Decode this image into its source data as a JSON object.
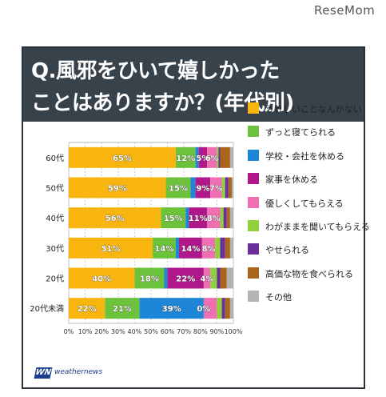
{
  "watermark": "ReseMom",
  "header": {
    "title_line1": "Q.風邪をひいて嬉しかった",
    "title_line2": "ことはありますか？(年代別)"
  },
  "logo": {
    "mark": "WN",
    "text": "weathernews"
  },
  "chart_data": {
    "type": "bar",
    "orientation": "horizontal",
    "stacked": true,
    "categories": [
      "60代",
      "50代",
      "40代",
      "30代",
      "20代",
      "20代未満"
    ],
    "x_ticks": [
      "0%",
      "10%",
      "20%",
      "30%",
      "40%",
      "50%",
      "60%",
      "70%",
      "80%",
      "90%",
      "100%"
    ],
    "xlim": [
      0,
      100
    ],
    "grid": true,
    "legend_position": "right",
    "series": [
      {
        "name": "うれしいことなんかない",
        "color": "#f9b50f",
        "values": [
          65,
          59,
          56,
          51,
          40,
          22
        ]
      },
      {
        "name": "ずっと寝てられる",
        "color": "#6cc23a",
        "values": [
          12,
          15,
          15,
          14,
          18,
          21
        ]
      },
      {
        "name": "学校・会社を休める",
        "color": "#1e86d6",
        "values": [
          2,
          3,
          2,
          2,
          2,
          39
        ]
      },
      {
        "name": "家事を休める",
        "color": "#b0178a",
        "values": [
          5,
          9,
          11,
          14,
          22,
          0
        ]
      },
      {
        "name": "優しくしてもらえる",
        "color": "#ef6fb3",
        "values": [
          6,
          7,
          8,
          8,
          4,
          8
        ]
      },
      {
        "name": "わがままを聞いてもらえる",
        "color": "#8ed13a",
        "values": [
          1,
          2,
          2,
          3,
          4,
          3
        ]
      },
      {
        "name": "やせられる",
        "color": "#6a2f9c",
        "values": [
          1,
          2,
          2,
          3,
          2,
          2
        ]
      },
      {
        "name": "高価な物を食べられる",
        "color": "#a9651b",
        "values": [
          6,
          2,
          2,
          3,
          4,
          3
        ]
      },
      {
        "name": "その他",
        "color": "#b3b3b3",
        "values": [
          2,
          1,
          2,
          2,
          4,
          2
        ]
      }
    ],
    "data_labels": [
      [
        {
          "series": 0,
          "text": "65%"
        },
        {
          "series": 1,
          "text": "12%"
        },
        {
          "series": 3,
          "text": "5%"
        },
        {
          "series": 4,
          "text": "6%"
        }
      ],
      [
        {
          "series": 0,
          "text": "59%"
        },
        {
          "series": 1,
          "text": "15%"
        },
        {
          "series": 3,
          "text": "9%"
        },
        {
          "series": 4,
          "text": "7%"
        }
      ],
      [
        {
          "series": 0,
          "text": "56%"
        },
        {
          "series": 1,
          "text": "15%"
        },
        {
          "series": 3,
          "text": "11%"
        },
        {
          "series": 4,
          "text": "8%"
        }
      ],
      [
        {
          "series": 0,
          "text": "51%"
        },
        {
          "series": 1,
          "text": "14%"
        },
        {
          "series": 3,
          "text": "14%"
        },
        {
          "series": 4,
          "text": "8%"
        }
      ],
      [
        {
          "series": 0,
          "text": "40%"
        },
        {
          "series": 1,
          "text": "18%"
        },
        {
          "series": 3,
          "text": "22%"
        },
        {
          "series": 4,
          "text": "4%"
        }
      ],
      [
        {
          "series": 0,
          "text": "22%"
        },
        {
          "series": 1,
          "text": "21%"
        },
        {
          "series": 2,
          "text": "39%"
        },
        {
          "series": 3,
          "text": "0%"
        }
      ]
    ]
  }
}
